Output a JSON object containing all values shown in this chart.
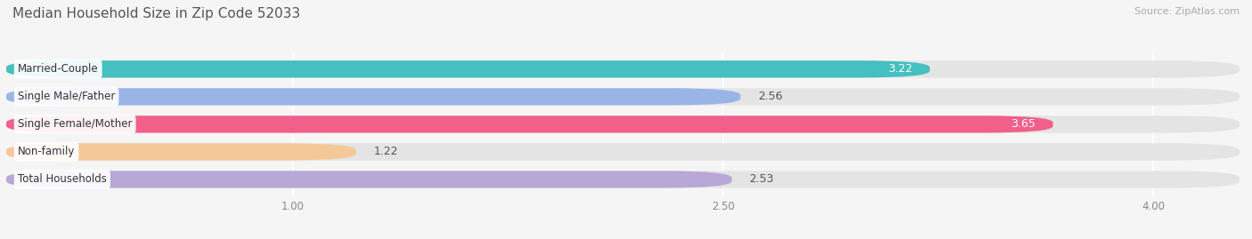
{
  "title": "Median Household Size in Zip Code 52033",
  "source": "Source: ZipAtlas.com",
  "categories": [
    "Married-Couple",
    "Single Male/Father",
    "Single Female/Mother",
    "Non-family",
    "Total Households"
  ],
  "values": [
    3.22,
    2.56,
    3.65,
    1.22,
    2.53
  ],
  "colors": [
    "#45bfbf",
    "#9ab4e8",
    "#f0608a",
    "#f5c898",
    "#b8a8d8"
  ],
  "value_label_colors": [
    "white",
    "#777777",
    "white",
    "#777777",
    "#777777"
  ],
  "xmin": 0.0,
  "xmax": 4.3,
  "xticks": [
    1.0,
    2.5,
    4.0
  ],
  "xtick_labels": [
    "1.00",
    "2.50",
    "4.00"
  ],
  "bar_height": 0.62,
  "background_color": "#f5f5f5",
  "bar_bg_color": "#e4e4e4",
  "title_fontsize": 11,
  "label_fontsize": 8.5,
  "value_fontsize": 9,
  "source_fontsize": 8
}
